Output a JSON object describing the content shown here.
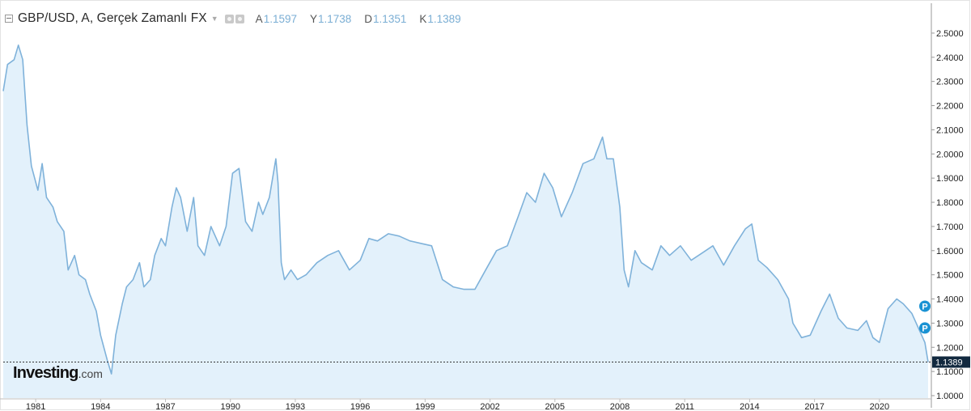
{
  "header": {
    "title": "GBP/USD, A, Gerçek Zamanlı FX",
    "ohlc": [
      {
        "key": "A",
        "value": "1.1597"
      },
      {
        "key": "Y",
        "value": "1.1738"
      },
      {
        "key": "D",
        "value": "1.1351"
      },
      {
        "key": "K",
        "value": "1.1389"
      }
    ]
  },
  "logo": {
    "main": "Investing",
    "dot": ".",
    "suffix": "com"
  },
  "colors": {
    "line": "#7fb2da",
    "area": "#e3f1fb",
    "current_price_tag": "#12293f",
    "marker": "#1a92d3"
  },
  "markers": [
    "P",
    "P"
  ],
  "current_price_label": "1.1389",
  "chart_data": {
    "type": "area",
    "title": "GBP/USD",
    "y_ticks": [
      "2.5000",
      "2.4000",
      "2.3000",
      "2.2000",
      "2.1000",
      "2.0000",
      "1.9000",
      "1.8000",
      "1.7000",
      "1.6000",
      "1.5000",
      "1.4000",
      "1.3000",
      "1.2000",
      "1.1000",
      "1.0000"
    ],
    "x_ticks": [
      "1981",
      "1984",
      "1987",
      "1990",
      "1993",
      "1996",
      "1999",
      "2002",
      "2005",
      "2008",
      "2011",
      "2014",
      "2017",
      "2020"
    ],
    "ylim": [
      0.99,
      2.57
    ],
    "xlim": [
      1980.0,
      2022.75
    ],
    "current_value": 1.1389,
    "grid": false,
    "series": [
      {
        "x": [
          1980.0,
          1980.2,
          1980.5,
          1980.7,
          1980.9,
          1981.1,
          1981.3,
          1981.6,
          1981.8,
          1982.0,
          1982.3,
          1982.5,
          1982.8,
          1983.0,
          1983.3,
          1983.5,
          1983.8,
          1984.0,
          1984.3,
          1984.5,
          1984.8,
          1985.0,
          1985.2,
          1985.5,
          1985.7,
          1986.0,
          1986.3,
          1986.5,
          1986.8,
          1987.0,
          1987.3,
          1987.5,
          1987.8,
          1988.0,
          1988.2,
          1988.5,
          1988.8,
          1989.0,
          1989.3,
          1989.6,
          1990.0,
          1990.3,
          1990.6,
          1990.9,
          1991.2,
          1991.5,
          1991.8,
          1992.0,
          1992.3,
          1992.6,
          1992.7,
          1992.85,
          1993.0,
          1993.3,
          1993.6,
          1994.0,
          1994.5,
          1995.0,
          1995.5,
          1996.0,
          1996.5,
          1996.9,
          1997.3,
          1997.8,
          1998.3,
          1998.8,
          1999.3,
          1999.8,
          2000.3,
          2000.8,
          2001.3,
          2001.8,
          2002.3,
          2002.8,
          2003.3,
          2003.8,
          2004.2,
          2004.6,
          2005.0,
          2005.4,
          2005.8,
          2006.3,
          2006.8,
          2007.3,
          2007.7,
          2007.9,
          2008.2,
          2008.5,
          2008.7,
          2008.9,
          2009.2,
          2009.5,
          2010.0,
          2010.4,
          2010.8,
          2011.3,
          2011.8,
          2012.3,
          2012.8,
          2013.3,
          2013.8,
          2014.3,
          2014.6,
          2014.9,
          2015.3,
          2015.8,
          2016.3,
          2016.5,
          2016.9,
          2017.3,
          2017.8,
          2018.2,
          2018.6,
          2019.0,
          2019.5,
          2019.9,
          2020.2,
          2020.5,
          2020.9,
          2021.3,
          2021.6,
          2022.0,
          2022.3,
          2022.6,
          2022.75
        ],
        "y": [
          2.26,
          2.37,
          2.39,
          2.45,
          2.39,
          2.12,
          1.95,
          1.85,
          1.96,
          1.82,
          1.78,
          1.72,
          1.68,
          1.52,
          1.58,
          1.5,
          1.48,
          1.42,
          1.35,
          1.25,
          1.15,
          1.09,
          1.25,
          1.38,
          1.45,
          1.48,
          1.55,
          1.45,
          1.48,
          1.58,
          1.65,
          1.62,
          1.78,
          1.86,
          1.82,
          1.68,
          1.82,
          1.62,
          1.58,
          1.7,
          1.62,
          1.7,
          1.92,
          1.94,
          1.72,
          1.68,
          1.8,
          1.75,
          1.82,
          1.98,
          1.88,
          1.55,
          1.48,
          1.52,
          1.48,
          1.5,
          1.55,
          1.58,
          1.6,
          1.52,
          1.56,
          1.65,
          1.64,
          1.67,
          1.66,
          1.64,
          1.63,
          1.62,
          1.48,
          1.45,
          1.44,
          1.44,
          1.52,
          1.6,
          1.62,
          1.74,
          1.84,
          1.8,
          1.92,
          1.86,
          1.74,
          1.84,
          1.96,
          1.98,
          2.07,
          1.98,
          1.98,
          1.78,
          1.52,
          1.45,
          1.6,
          1.55,
          1.52,
          1.62,
          1.58,
          1.62,
          1.56,
          1.59,
          1.62,
          1.54,
          1.62,
          1.69,
          1.71,
          1.56,
          1.53,
          1.48,
          1.4,
          1.3,
          1.24,
          1.25,
          1.35,
          1.42,
          1.32,
          1.28,
          1.27,
          1.31,
          1.24,
          1.22,
          1.36,
          1.4,
          1.38,
          1.34,
          1.28,
          1.22,
          1.1389
        ]
      }
    ]
  }
}
